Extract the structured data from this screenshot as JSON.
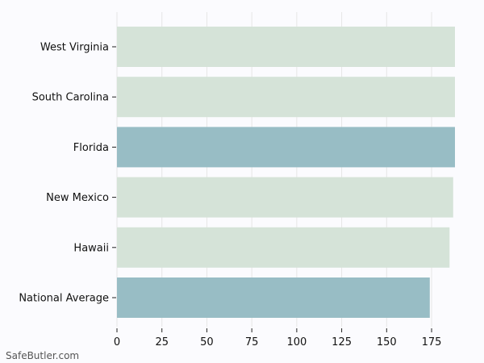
{
  "chart_data": {
    "type": "bar",
    "orientation": "horizontal",
    "categories": [
      "West Virginia",
      "South Carolina",
      "Florida",
      "New Mexico",
      "Hawaii",
      "National Average"
    ],
    "values": [
      188,
      188,
      188,
      187,
      185,
      174
    ],
    "highlight": [
      false,
      false,
      true,
      false,
      false,
      true
    ],
    "xlim": [
      0,
      188
    ],
    "xticks": [
      0,
      25,
      50,
      75,
      100,
      125,
      150,
      175
    ],
    "grid": true,
    "colors": {
      "bar": "#d5e3d8",
      "highlight": "#98bdc5",
      "grid": "#e6e6e6",
      "axis": "#222222"
    }
  },
  "watermark": "SafeButler.com"
}
